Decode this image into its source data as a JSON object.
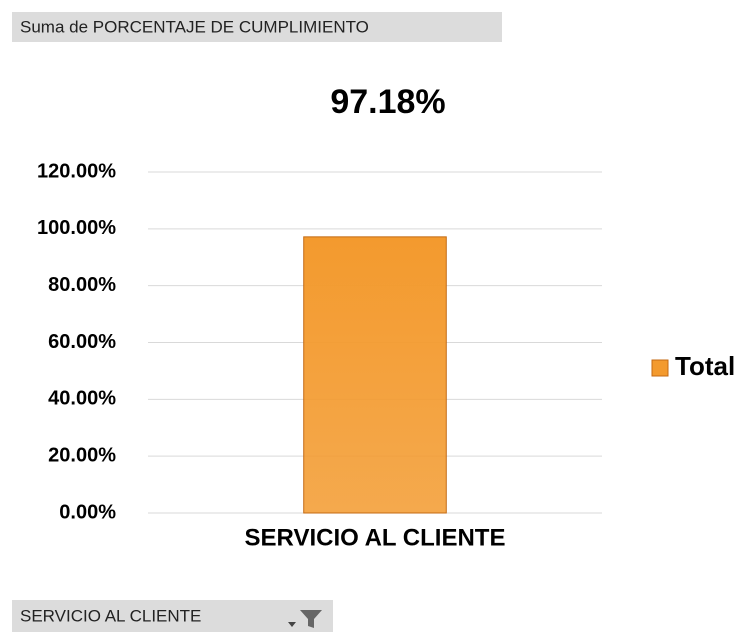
{
  "field_button": "Suma de PORCENTAJE DE CUMPLIMIENTO",
  "filter_button": "SERVICIO AL CLIENTE",
  "chart_data": {
    "type": "bar",
    "title": "97.18%",
    "categories": [
      "SERVICIO AL CLIENTE"
    ],
    "series": [
      {
        "name": "Total",
        "color": "#f39a2e",
        "values": [
          97.18
        ]
      }
    ],
    "ylim": [
      0,
      120
    ],
    "yticks": [
      {
        "value": 0,
        "label": "0.00%"
      },
      {
        "value": 20,
        "label": "20.00%"
      },
      {
        "value": 40,
        "label": "40.00%"
      },
      {
        "value": 60,
        "label": "60.00%"
      },
      {
        "value": 80,
        "label": "80.00%"
      },
      {
        "value": 100,
        "label": "100.00%"
      },
      {
        "value": 120,
        "label": "120.00%"
      }
    ],
    "grid": true,
    "legend": "right"
  }
}
